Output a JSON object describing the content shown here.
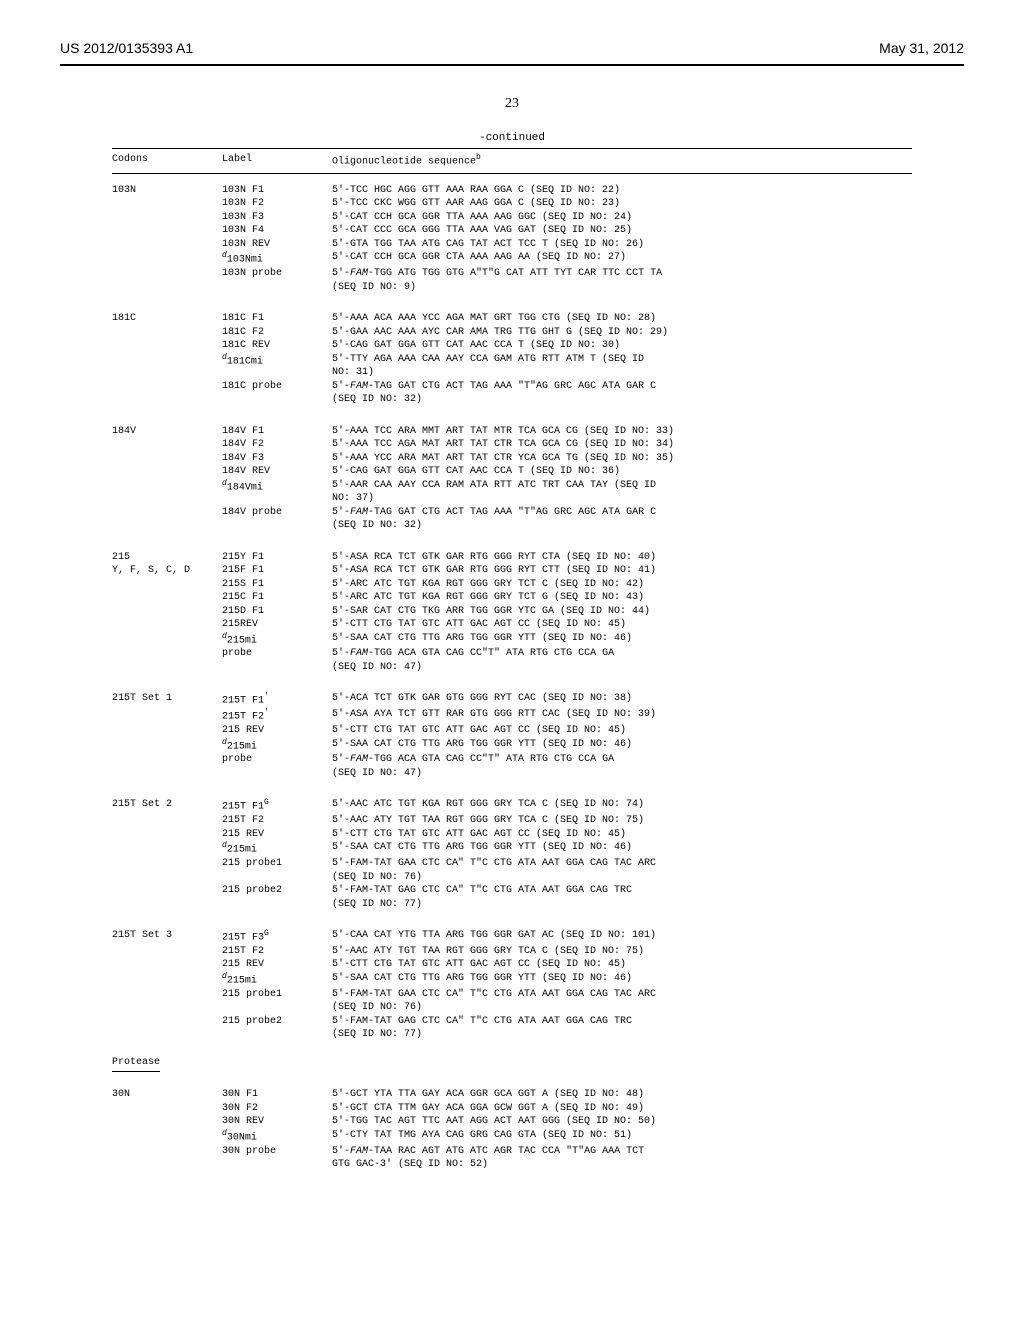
{
  "header": {
    "pub_id": "US 2012/0135393 A1",
    "pub_date": "May 31, 2012",
    "page_number": "23",
    "continued": "-continued"
  },
  "columns": {
    "c1": "Codons",
    "c2": "Label",
    "c3_prefix": "Oligonucleotide sequence",
    "c3_sup": "b"
  },
  "groups": [
    {
      "codon": "103N",
      "rows": [
        {
          "label": "103N F1",
          "seq": "5'-TCC HGC AGG GTT AAA RAA GGA C (SEQ ID NO: 22)"
        },
        {
          "label": "103N F2",
          "seq": "5'-TCC CKC WGG GTT AAR AAG GGA C (SEQ ID NO: 23)"
        },
        {
          "label": "103N F3",
          "seq": "5'-CAT CCH GCA GGR TTA AAA AAG GGC (SEQ ID NO: 24)"
        },
        {
          "label": "103N F4",
          "seq": "5'-CAT CCC GCA GGG TTA AAA VAG GAT (SEQ ID NO: 25)"
        },
        {
          "label": "103N REV",
          "seq": "5'-GTA TGG TAA ATG CAG TAT ACT TCC T (SEQ ID NO: 26)"
        },
        {
          "label": "d103Nmi",
          "sup": "d",
          "seq": "5'-CAT CCH GCA GGR CTA AAA AAG AA (SEQ ID NO: 27)"
        },
        {
          "label": "103N probe",
          "seq": "5'-FAM-TGG ATG TGG GTG A\"T\"G CAT ATT TYT CAR TTC CCT TA\n(SEQ ID NO: 9)",
          "ital": true
        }
      ]
    },
    {
      "codon": "181C",
      "rows": [
        {
          "label": "181C F1",
          "seq": "5'-AAA ACA AAA YCC AGA MAT GRT TGG CTG (SEQ ID NO: 28)"
        },
        {
          "label": "181C F2",
          "seq": "5'-GAA AAC AAA AYC CAR AMA TRG TTG GHT G (SEQ ID NO: 29)"
        },
        {
          "label": "181C REV",
          "seq": "5'-CAG GAT GGA GTT CAT AAC CCA T (SEQ ID NO: 30)"
        },
        {
          "label": "d181Cmi",
          "sup": "d",
          "seq": "5'-TTY AGA AAA CAA AAY CCA GAM ATG RTT ATM T (SEQ ID\nNO: 31)"
        },
        {
          "label": "181C probe",
          "seq": "5'-FAM-TAG GAT CTG ACT TAG AAA \"T\"AG GRC AGC ATA GAR C\n(SEQ ID NO: 32)",
          "ital": true
        }
      ]
    },
    {
      "codon": "184V",
      "rows": [
        {
          "label": "184V F1",
          "seq": "5'-AAA TCC ARA MMT ART TAT MTR TCA GCA CG (SEQ ID NO: 33)"
        },
        {
          "label": "184V F2",
          "seq": "5'-AAA TCC AGA MAT ART TAT CTR TCA GCA CG (SEQ ID NO: 34)"
        },
        {
          "label": "184V F3",
          "seq": "5'-AAA YCC ARA MAT ART TAT CTR YCA GCA TG (SEQ ID NO: 35)"
        },
        {
          "label": "184V REV",
          "seq": "5'-CAG GAT GGA GTT CAT AAC CCA T (SEQ ID NO: 36)"
        },
        {
          "label": "d184Vmi",
          "sup": "d",
          "seq": "5'-AAR CAA AAY CCA RAM ATA RTT ATC TRT CAA TAY (SEQ ID\nNO: 37)"
        },
        {
          "label": "184V probe",
          "seq": "5'-FAM-TAG GAT CTG ACT TAG AAA \"T\"AG GRC AGC ATA GAR C\n(SEQ ID NO: 32)",
          "ital": true
        }
      ]
    },
    {
      "codon": "215\nY, F, S, C, D",
      "rows": [
        {
          "label": "215Y F1",
          "seq": "5'-ASA RCA TCT GTK GAR RTG GGG RYT CTA (SEQ ID NO: 40)"
        },
        {
          "label": "215F F1",
          "seq": "5'-ASA RCA TCT GTK GAR RTG GGG RYT CTT (SEQ ID NO: 41)"
        },
        {
          "label": "215S F1",
          "seq": "5'-ARC ATC TGT KGA RGT GGG GRY TCT C (SEQ ID NO: 42)"
        },
        {
          "label": "215C F1",
          "seq": "5'-ARC ATC TGT KGA RGT GGG GRY TCT G (SEQ ID NO: 43)"
        },
        {
          "label": "215D F1",
          "seq": "5'-SAR CAT CTG TKG ARR TGG GGR YTC GA (SEQ ID NO: 44)"
        },
        {
          "label": "215REV",
          "seq": "5'-CTT CTG TAT GTC ATT GAC AGT CC (SEQ ID NO: 45)"
        },
        {
          "label": "d215mi",
          "sup": "d",
          "seq": "5'-SAA CAT CTG TTG ARG TGG GGR YTT (SEQ ID NO: 46)"
        },
        {
          "label": "probe",
          "seq": "5'-FAM-TGG ACA GTA CAG CC\"T\" ATA RTG CTG CCA GA\n(SEQ ID NO: 47)",
          "ital": true
        }
      ]
    },
    {
      "codon": "215T Set 1",
      "rows": [
        {
          "label": "215T F1'",
          "sup2": "'",
          "seq": "5'-ACA TCT GTK GAR GTG GGG RYT CAC (SEQ ID NO: 38)"
        },
        {
          "label": "215T F2'",
          "sup2": "'",
          "seq": "5'-ASA AYA TCT GTT RAR GTG GGG RTT CAC (SEQ ID NO: 39)"
        },
        {
          "label": "215 REV",
          "seq": "5'-CTT CTG TAT GTC ATT GAC AGT CC (SEQ ID NO: 45)"
        },
        {
          "label": "d215mi",
          "sup": "d",
          "seq": "5'-SAA CAT CTG TTG ARG TGG GGR YTT (SEQ ID NO: 46)"
        },
        {
          "label": "probe",
          "seq": "5'-FAM-TGG ACA GTA CAG CC\"T\" ATA RTG CTG CCA GA\n(SEQ ID NO: 47)",
          "ital": true
        }
      ]
    },
    {
      "codon": "215T Set 2",
      "rows": [
        {
          "label": "215T F1G",
          "sup2": "G",
          "seq": "5'-AAC ATC TGT KGA RGT GGG GRY TCA C (SEQ ID NO: 74)"
        },
        {
          "label": "215T F2",
          "seq": "5'-AAC ATY TGT TAA RGT GGG GRY TCA C (SEQ ID NO: 75)"
        },
        {
          "label": "215 REV",
          "seq": "5'-CTT CTG TAT GTC ATT GAC AGT CC (SEQ ID NO: 45)"
        },
        {
          "label": "d215mi",
          "sup": "d",
          "seq": "5'-SAA CAT CTG TTG ARG TGG GGR YTT (SEQ ID NO: 46)"
        },
        {
          "label": "215 probe1",
          "seq": "5'-FAM-TAT GAA CTC CA\" T\"C CTG ATA AAT GGA CAG TAC ARC\n(SEQ ID NO: 76)"
        },
        {
          "label": "215 probe2",
          "seq": "5'-FAM-TAT GAG CTC CA\" T\"C CTG ATA AAT GGA CAG TRC\n(SEQ ID NO: 77)"
        }
      ]
    },
    {
      "codon": "215T Set 3",
      "rows": [
        {
          "label": "215T F3G",
          "sup2": "G",
          "seq": "5'-CAA CAT YTG TTA ARG TGG GGR GAT AC (SEQ ID NO: 101)"
        },
        {
          "label": "215T F2",
          "seq": "5'-AAC ATY TGT TAA RGT GGG GRY TCA C (SEQ ID NO: 75)"
        },
        {
          "label": "215 REV",
          "seq": "5'-CTT CTG TAT GTC ATT GAC AGT CC (SEQ ID NO: 45)"
        },
        {
          "label": "d215mi",
          "sup": "d",
          "seq": "5'-SAA CAT CTG TTG ARG TGG GGR YTT (SEQ ID NO: 46)"
        },
        {
          "label": "215 probe1",
          "seq": "5'-FAM-TAT GAA CTC CA\" T\"C CTG ATA AAT GGA CAG TAC ARC\n(SEQ ID NO: 76)"
        },
        {
          "label": "215 probe2",
          "seq": "5'-FAM-TAT GAG CTC CA\" T\"C CTG ATA AAT GGA CAG TRC\n(SEQ ID NO: 77)"
        }
      ]
    }
  ],
  "section2": {
    "title": "Protease",
    "groups": [
      {
        "codon": "30N",
        "rows": [
          {
            "label": "30N F1",
            "seq": "5'-GCT YTA TTA GAY ACA GGR GCA GGT A (SEQ ID NO: 48)"
          },
          {
            "label": "30N F2",
            "seq": "5'-GCT CTA TTM GAY ACA GGA GCW GGT A (SEQ ID NO: 49)"
          },
          {
            "label": "30N REV",
            "seq": "5'-TGG TAC AGT TTC AAT AGG ACT AAT GGG (SEQ ID NO: 50)"
          },
          {
            "label": "d30Nmi",
            "sup": "d",
            "seq": "5'-CTY TAT TMG AYA CAG GRG CAG GTA (SEQ ID NO: 51)"
          },
          {
            "label": "30N probe",
            "seq": "5'-FAM-TAA RAC AGT ATG ATC AGR TAC CCA \"T\"AG AAA TCT\nGTG GAC-3' (SEQ ID NO: 52)",
            "ital": true
          }
        ]
      }
    ]
  }
}
